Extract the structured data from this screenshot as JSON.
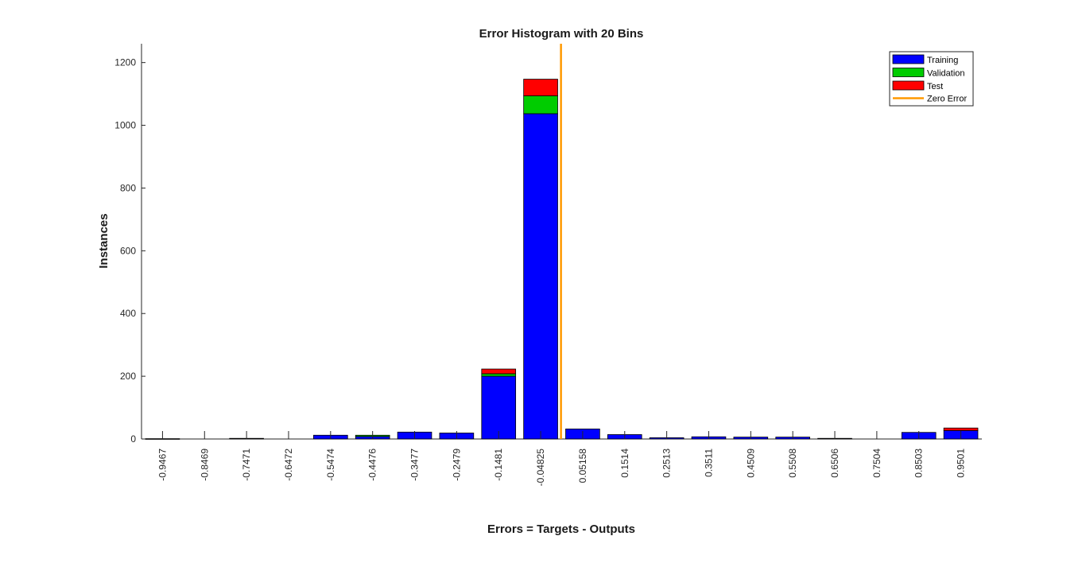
{
  "chart_data": {
    "type": "bar",
    "title": "Error Histogram with 20 Bins",
    "xlabel": "Errors = Targets - Outputs",
    "ylabel": "Instances",
    "ylim": [
      0,
      1260
    ],
    "yticks": [
      0,
      200,
      400,
      600,
      800,
      1000,
      1200
    ],
    "categories": [
      "-0.9467",
      "-0.8469",
      "-0.7471",
      "-0.6472",
      "-0.5474",
      "-0.4476",
      "-0.3477",
      "-0.2479",
      "-0.1481",
      "-0.04825",
      "0.05158",
      "0.1514",
      "0.2513",
      "0.3511",
      "0.4509",
      "0.5508",
      "0.6506",
      "0.7504",
      "0.8503",
      "0.9501"
    ],
    "stacked": true,
    "series": [
      {
        "name": "Training",
        "color": "#0000ff",
        "values": [
          1,
          0,
          2,
          0,
          12,
          8,
          22,
          19,
          200,
          1037,
          32,
          14,
          4,
          7,
          6,
          6,
          2,
          0,
          21,
          27
        ]
      },
      {
        "name": "Validation",
        "color": "#00cc00",
        "values": [
          0,
          0,
          0,
          0,
          0,
          4,
          0,
          0,
          8,
          57,
          0,
          0,
          0,
          0,
          0,
          0,
          0,
          0,
          0,
          0
        ]
      },
      {
        "name": "Test",
        "color": "#ff0000",
        "values": [
          0,
          0,
          0,
          0,
          0,
          0,
          0,
          0,
          15,
          53,
          0,
          0,
          0,
          0,
          0,
          0,
          0,
          0,
          0,
          8
        ]
      }
    ],
    "zero_error": {
      "name": "Zero Error",
      "color": "#ff9900",
      "x": 0
    },
    "legend_position": "top-right",
    "grid": false
  }
}
